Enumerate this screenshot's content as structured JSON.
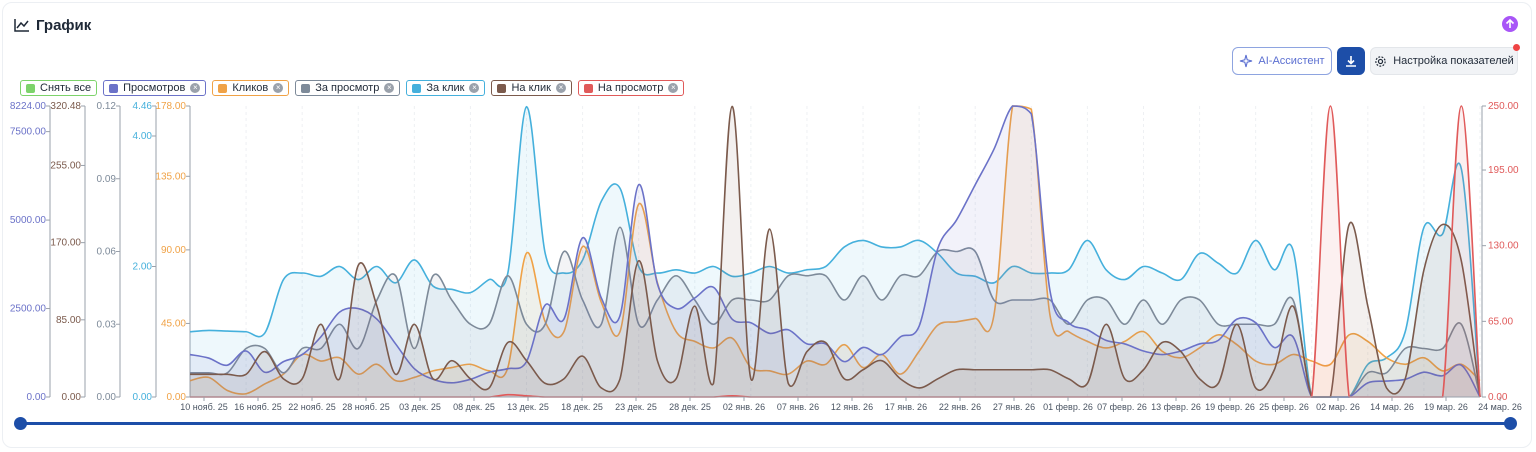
{
  "header": {
    "title": "График"
  },
  "toolbar": {
    "ai_label": "AI-Ассистент",
    "settings_label": "Настройка показателей"
  },
  "legend": {
    "clear_label": "Снять все",
    "clear_color": "#7dd36b",
    "items": [
      {
        "label": "Просмотров",
        "color": "#6b72c8"
      },
      {
        "label": "Кликов",
        "color": "#f0a246"
      },
      {
        "label": "За просмотр",
        "color": "#7d8a99"
      },
      {
        "label": "За клик",
        "color": "#45b0dc"
      },
      {
        "label": "На клик",
        "color": "#7b5a4c"
      },
      {
        "label": "На просмотр",
        "color": "#e05a5a"
      }
    ]
  },
  "chart_data": {
    "type": "line",
    "x_labels": [
      "10 нояб. 25",
      "16 нояб. 25",
      "22 нояб. 25",
      "28 нояб. 25",
      "03 дек. 25",
      "08 дек. 25",
      "13 дек. 25",
      "18 дек. 25",
      "23 дек. 25",
      "28 дек. 25",
      "02 янв. 26",
      "07 янв. 26",
      "12 янв. 26",
      "17 янв. 26",
      "22 янв. 26",
      "27 янв. 26",
      "01 февр. 26",
      "07 февр. 26",
      "13 февр. 26",
      "19 февр. 26",
      "25 февр. 26",
      "02 мар. 26",
      "14 мар. 26",
      "19 мар. 26",
      "24 мар. 26"
    ],
    "axes": [
      {
        "series": "Просмотров",
        "ticks": [
          "0.00",
          "2500.00",
          "5000.00",
          "7500.00",
          "8224.00"
        ],
        "min": 0,
        "max": 8224,
        "color": "#6b72c8"
      },
      {
        "series": "На клик",
        "ticks": [
          "0.00",
          "85.00",
          "170.00",
          "255.00",
          "320.48"
        ],
        "min": 0,
        "max": 320.48,
        "color": "#7b5a4c"
      },
      {
        "series": "За просмотр",
        "ticks": [
          "0.00",
          "0.03",
          "0.06",
          "0.09",
          "0.12"
        ],
        "min": 0,
        "max": 0.12,
        "color": "#7d8a99"
      },
      {
        "series": "За клик",
        "ticks": [
          "0.00",
          "2.00",
          "4.00",
          "4.46"
        ],
        "min": 0,
        "max": 4.46,
        "color": "#45b0dc"
      },
      {
        "series": "Кликов",
        "ticks": [
          "0.00",
          "45.00",
          "90.00",
          "135.00",
          "178.00"
        ],
        "min": 0,
        "max": 178,
        "color": "#f0a246"
      },
      {
        "series": "На просмотр",
        "ticks": [
          "0.00",
          "65.00",
          "130.00",
          "195.00",
          "250.00"
        ],
        "min": 0,
        "max": 250,
        "color": "#e05a5a"
      }
    ],
    "series": [
      {
        "name": "За клик",
        "color": "#45b0dc",
        "values": [
          1.0,
          1.02,
          1.01,
          1.0,
          0.98,
          1.8,
          1.9,
          1.85,
          2.0,
          1.8,
          2.0,
          1.75,
          2.1,
          1.7,
          1.65,
          1.6,
          1.8,
          1.9,
          4.45,
          2.2,
          1.9,
          2.1,
          3.0,
          3.2,
          2.0,
          1.9,
          1.95,
          1.9,
          2.0,
          1.85,
          1.9,
          2.0,
          1.9,
          1.95,
          2.0,
          2.3,
          2.4,
          2.3,
          2.3,
          2.4,
          2.2,
          1.9,
          1.85,
          1.75,
          2.0,
          1.9,
          1.9,
          1.95,
          2.4,
          1.95,
          1.8,
          2.0,
          1.9,
          1.8,
          2.2,
          2.05,
          1.9,
          2.4,
          1.95,
          2.25,
          0.0,
          0.0,
          0.0,
          0.5,
          0.6,
          1.0,
          2.6,
          2.5,
          3.5,
          0.0
        ]
      },
      {
        "name": "Кликов",
        "color": "#f0a246",
        "values": [
          10,
          12,
          4,
          2,
          8,
          14,
          26,
          22,
          24,
          14,
          20,
          10,
          12,
          16,
          18,
          20,
          16,
          18,
          88,
          46,
          40,
          92,
          58,
          40,
          118,
          70,
          40,
          34,
          30,
          36,
          18,
          16,
          14,
          22,
          20,
          32,
          18,
          26,
          14,
          28,
          44,
          46,
          48,
          50,
          178,
          176,
          50,
          40,
          34,
          30,
          34,
          40,
          28,
          24,
          30,
          38,
          32,
          22,
          20,
          26,
          22,
          20,
          38,
          34,
          24,
          20,
          24,
          16,
          20,
          10
        ]
      },
      {
        "name": "За просмотр",
        "color": "#7d8a99",
        "values": [
          0.01,
          0.01,
          0.01,
          0.02,
          0.02,
          0.01,
          0.02,
          0.02,
          0.03,
          0.02,
          0.04,
          0.05,
          0.02,
          0.05,
          0.04,
          0.03,
          0.03,
          0.05,
          0.03,
          0.03,
          0.06,
          0.04,
          0.03,
          0.07,
          0.03,
          0.04,
          0.05,
          0.04,
          0.03,
          0.04,
          0.04,
          0.04,
          0.05,
          0.05,
          0.05,
          0.04,
          0.05,
          0.04,
          0.05,
          0.05,
          0.06,
          0.06,
          0.06,
          0.04,
          0.04,
          0.04,
          0.04,
          0.03,
          0.04,
          0.04,
          0.03,
          0.04,
          0.03,
          0.04,
          0.04,
          0.03,
          0.03,
          0.03,
          0.03,
          0.04,
          0.0,
          0.0,
          0.0,
          0.01,
          0.01,
          0.02,
          0.02,
          0.02,
          0.03,
          0.0
        ]
      },
      {
        "name": "Просмотров",
        "color": "#6b72c8",
        "values": [
          1200,
          1100,
          900,
          1300,
          700,
          1000,
          1200,
          1700,
          2400,
          2500,
          2200,
          1500,
          800,
          500,
          400,
          500,
          700,
          800,
          1000,
          2600,
          2200,
          4500,
          2800,
          2300,
          6000,
          3200,
          2500,
          2800,
          3100,
          2200,
          2100,
          1800,
          1900,
          1500,
          1500,
          1000,
          1400,
          1200,
          1700,
          2000,
          4200,
          5000,
          6000,
          7000,
          8224,
          8000,
          3000,
          2100,
          1900,
          1600,
          1500,
          1300,
          1200,
          1300,
          1500,
          1600,
          2200,
          2100,
          1400,
          1700,
          0,
          0,
          0,
          400,
          450,
          500,
          700,
          600,
          900,
          0
        ]
      },
      {
        "name": "На клик",
        "color": "#7b5a4c",
        "values": [
          25,
          25,
          25,
          25,
          50,
          20,
          20,
          80,
          20,
          145,
          100,
          25,
          80,
          20,
          40,
          20,
          10,
          60,
          40,
          15,
          20,
          45,
          10,
          20,
          150,
          40,
          20,
          100,
          15,
          320,
          20,
          185,
          15,
          50,
          60,
          20,
          30,
          40,
          20,
          10,
          20,
          30,
          30,
          30,
          30,
          30,
          30,
          20,
          15,
          80,
          20,
          30,
          60,
          50,
          20,
          15,
          80,
          10,
          30,
          100,
          0,
          0,
          190,
          100,
          10,
          20,
          140,
          190,
          150,
          0
        ]
      },
      {
        "name": "На просмотр",
        "color": "#e05a5a",
        "values": [
          0,
          0,
          0,
          0,
          0,
          0,
          0,
          0,
          0,
          0,
          0,
          0,
          0,
          0,
          0,
          0,
          0,
          2,
          1,
          0,
          0,
          0,
          0,
          0,
          0,
          0,
          0,
          0,
          0,
          1,
          0,
          0,
          0,
          0,
          0,
          0,
          0,
          0,
          0,
          0,
          0,
          0,
          0,
          0,
          0,
          0,
          0,
          0,
          0,
          0,
          0,
          0,
          0,
          0,
          0,
          0,
          0,
          0,
          0,
          0,
          0,
          250,
          0,
          0,
          0,
          0,
          0,
          0,
          250,
          0
        ]
      }
    ]
  }
}
